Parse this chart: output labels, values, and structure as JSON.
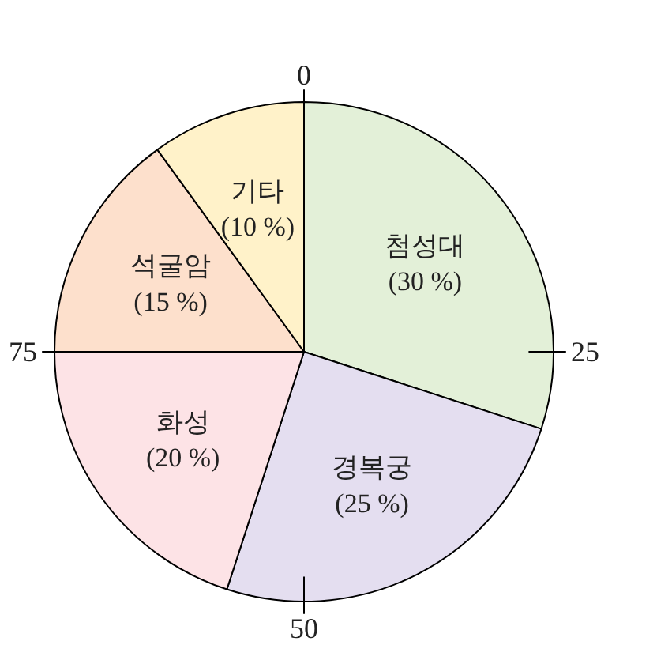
{
  "chart_data": {
    "type": "pie",
    "categories": [
      "첨성대",
      "경복궁",
      "화성",
      "석굴암",
      "기타"
    ],
    "values": [
      30,
      25,
      20,
      15,
      10
    ],
    "value_labels": [
      "(30 %)",
      "(25 %)",
      "(20 %)",
      "(15 %)",
      "(10 %)"
    ],
    "colors": [
      "#e3f0d8",
      "#e4def0",
      "#fde3e6",
      "#fde0cc",
      "#fff2c9"
    ],
    "annotations": [
      "0",
      "25",
      "50",
      "75"
    ]
  }
}
